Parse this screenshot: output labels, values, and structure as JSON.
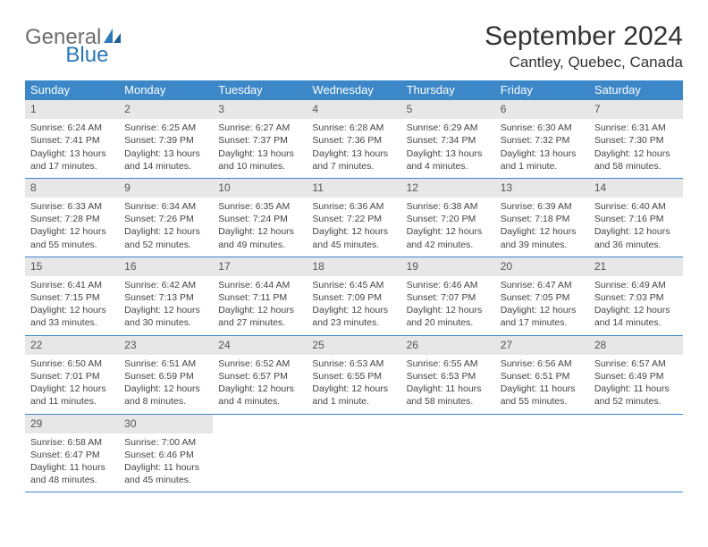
{
  "brand": {
    "part1": "General",
    "part2": "Blue"
  },
  "title": "September 2024",
  "location": "Cantley, Quebec, Canada",
  "colors": {
    "header_bg": "#3b87c8",
    "header_text": "#ffffff",
    "daynum_bg": "#e7e7e7",
    "daynum_text": "#555555",
    "body_text": "#444444",
    "rule": "#3b87c8"
  },
  "days_of_week": [
    "Sunday",
    "Monday",
    "Tuesday",
    "Wednesday",
    "Thursday",
    "Friday",
    "Saturday"
  ],
  "weeks": [
    [
      {
        "n": "1",
        "sr": "Sunrise: 6:24 AM",
        "ss": "Sunset: 7:41 PM",
        "d1": "Daylight: 13 hours",
        "d2": "and 17 minutes."
      },
      {
        "n": "2",
        "sr": "Sunrise: 6:25 AM",
        "ss": "Sunset: 7:39 PM",
        "d1": "Daylight: 13 hours",
        "d2": "and 14 minutes."
      },
      {
        "n": "3",
        "sr": "Sunrise: 6:27 AM",
        "ss": "Sunset: 7:37 PM",
        "d1": "Daylight: 13 hours",
        "d2": "and 10 minutes."
      },
      {
        "n": "4",
        "sr": "Sunrise: 6:28 AM",
        "ss": "Sunset: 7:36 PM",
        "d1": "Daylight: 13 hours",
        "d2": "and 7 minutes."
      },
      {
        "n": "5",
        "sr": "Sunrise: 6:29 AM",
        "ss": "Sunset: 7:34 PM",
        "d1": "Daylight: 13 hours",
        "d2": "and 4 minutes."
      },
      {
        "n": "6",
        "sr": "Sunrise: 6:30 AM",
        "ss": "Sunset: 7:32 PM",
        "d1": "Daylight: 13 hours",
        "d2": "and 1 minute."
      },
      {
        "n": "7",
        "sr": "Sunrise: 6:31 AM",
        "ss": "Sunset: 7:30 PM",
        "d1": "Daylight: 12 hours",
        "d2": "and 58 minutes."
      }
    ],
    [
      {
        "n": "8",
        "sr": "Sunrise: 6:33 AM",
        "ss": "Sunset: 7:28 PM",
        "d1": "Daylight: 12 hours",
        "d2": "and 55 minutes."
      },
      {
        "n": "9",
        "sr": "Sunrise: 6:34 AM",
        "ss": "Sunset: 7:26 PM",
        "d1": "Daylight: 12 hours",
        "d2": "and 52 minutes."
      },
      {
        "n": "10",
        "sr": "Sunrise: 6:35 AM",
        "ss": "Sunset: 7:24 PM",
        "d1": "Daylight: 12 hours",
        "d2": "and 49 minutes."
      },
      {
        "n": "11",
        "sr": "Sunrise: 6:36 AM",
        "ss": "Sunset: 7:22 PM",
        "d1": "Daylight: 12 hours",
        "d2": "and 45 minutes."
      },
      {
        "n": "12",
        "sr": "Sunrise: 6:38 AM",
        "ss": "Sunset: 7:20 PM",
        "d1": "Daylight: 12 hours",
        "d2": "and 42 minutes."
      },
      {
        "n": "13",
        "sr": "Sunrise: 6:39 AM",
        "ss": "Sunset: 7:18 PM",
        "d1": "Daylight: 12 hours",
        "d2": "and 39 minutes."
      },
      {
        "n": "14",
        "sr": "Sunrise: 6:40 AM",
        "ss": "Sunset: 7:16 PM",
        "d1": "Daylight: 12 hours",
        "d2": "and 36 minutes."
      }
    ],
    [
      {
        "n": "15",
        "sr": "Sunrise: 6:41 AM",
        "ss": "Sunset: 7:15 PM",
        "d1": "Daylight: 12 hours",
        "d2": "and 33 minutes."
      },
      {
        "n": "16",
        "sr": "Sunrise: 6:42 AM",
        "ss": "Sunset: 7:13 PM",
        "d1": "Daylight: 12 hours",
        "d2": "and 30 minutes."
      },
      {
        "n": "17",
        "sr": "Sunrise: 6:44 AM",
        "ss": "Sunset: 7:11 PM",
        "d1": "Daylight: 12 hours",
        "d2": "and 27 minutes."
      },
      {
        "n": "18",
        "sr": "Sunrise: 6:45 AM",
        "ss": "Sunset: 7:09 PM",
        "d1": "Daylight: 12 hours",
        "d2": "and 23 minutes."
      },
      {
        "n": "19",
        "sr": "Sunrise: 6:46 AM",
        "ss": "Sunset: 7:07 PM",
        "d1": "Daylight: 12 hours",
        "d2": "and 20 minutes."
      },
      {
        "n": "20",
        "sr": "Sunrise: 6:47 AM",
        "ss": "Sunset: 7:05 PM",
        "d1": "Daylight: 12 hours",
        "d2": "and 17 minutes."
      },
      {
        "n": "21",
        "sr": "Sunrise: 6:49 AM",
        "ss": "Sunset: 7:03 PM",
        "d1": "Daylight: 12 hours",
        "d2": "and 14 minutes."
      }
    ],
    [
      {
        "n": "22",
        "sr": "Sunrise: 6:50 AM",
        "ss": "Sunset: 7:01 PM",
        "d1": "Daylight: 12 hours",
        "d2": "and 11 minutes."
      },
      {
        "n": "23",
        "sr": "Sunrise: 6:51 AM",
        "ss": "Sunset: 6:59 PM",
        "d1": "Daylight: 12 hours",
        "d2": "and 8 minutes."
      },
      {
        "n": "24",
        "sr": "Sunrise: 6:52 AM",
        "ss": "Sunset: 6:57 PM",
        "d1": "Daylight: 12 hours",
        "d2": "and 4 minutes."
      },
      {
        "n": "25",
        "sr": "Sunrise: 6:53 AM",
        "ss": "Sunset: 6:55 PM",
        "d1": "Daylight: 12 hours",
        "d2": "and 1 minute."
      },
      {
        "n": "26",
        "sr": "Sunrise: 6:55 AM",
        "ss": "Sunset: 6:53 PM",
        "d1": "Daylight: 11 hours",
        "d2": "and 58 minutes."
      },
      {
        "n": "27",
        "sr": "Sunrise: 6:56 AM",
        "ss": "Sunset: 6:51 PM",
        "d1": "Daylight: 11 hours",
        "d2": "and 55 minutes."
      },
      {
        "n": "28",
        "sr": "Sunrise: 6:57 AM",
        "ss": "Sunset: 6:49 PM",
        "d1": "Daylight: 11 hours",
        "d2": "and 52 minutes."
      }
    ],
    [
      {
        "n": "29",
        "sr": "Sunrise: 6:58 AM",
        "ss": "Sunset: 6:47 PM",
        "d1": "Daylight: 11 hours",
        "d2": "and 48 minutes."
      },
      {
        "n": "30",
        "sr": "Sunrise: 7:00 AM",
        "ss": "Sunset: 6:46 PM",
        "d1": "Daylight: 11 hours",
        "d2": "and 45 minutes."
      },
      null,
      null,
      null,
      null,
      null
    ]
  ]
}
